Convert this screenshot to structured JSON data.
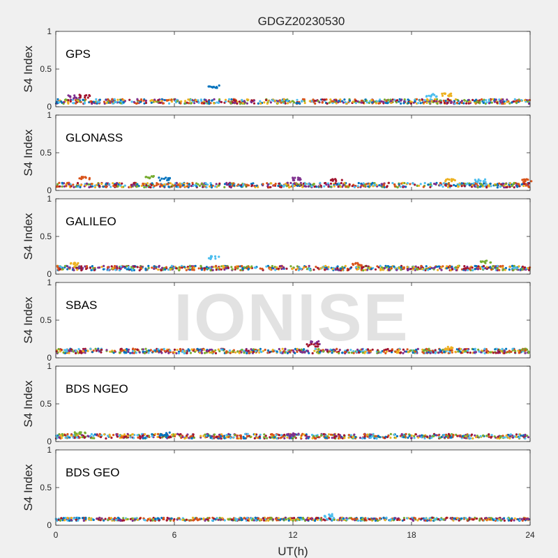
{
  "chart_data": {
    "type": "scatter",
    "title": "GDGZ20230530",
    "xlabel": "UT(h)",
    "ylabel": "S4 Index",
    "xlim": [
      0,
      24
    ],
    "xticks": [
      0,
      6,
      12,
      18,
      24
    ],
    "ylim": [
      0,
      1
    ],
    "yticks": [
      0,
      0.5,
      1
    ],
    "grid": false,
    "watermark": "IONISE",
    "series_colors": [
      "#0072bd",
      "#d95319",
      "#edb120",
      "#7e2f8e",
      "#77ac30",
      "#4dbeee",
      "#a2142f"
    ],
    "panels": [
      {
        "label": "GPS",
        "baseline": 0.07,
        "spread": 0.03,
        "features": [
          {
            "x": 8.0,
            "y": 0.29
          },
          {
            "x": 0.9,
            "y": 0.15
          },
          {
            "x": 1.5,
            "y": 0.16
          },
          {
            "x": 19.8,
            "y": 0.18
          },
          {
            "x": 19.0,
            "y": 0.17
          }
        ]
      },
      {
        "label": "GLONASS",
        "baseline": 0.07,
        "spread": 0.03,
        "features": [
          {
            "x": 1.5,
            "y": 0.18
          },
          {
            "x": 4.8,
            "y": 0.2
          },
          {
            "x": 5.5,
            "y": 0.17
          },
          {
            "x": 12.2,
            "y": 0.17
          },
          {
            "x": 14.2,
            "y": 0.16
          },
          {
            "x": 20.0,
            "y": 0.16
          },
          {
            "x": 21.5,
            "y": 0.15
          },
          {
            "x": 23.8,
            "y": 0.15
          }
        ]
      },
      {
        "label": "GALILEO",
        "baseline": 0.08,
        "spread": 0.03,
        "features": [
          {
            "x": 1.0,
            "y": 0.15
          },
          {
            "x": 8.0,
            "y": 0.24
          },
          {
            "x": 15.2,
            "y": 0.15
          },
          {
            "x": 21.8,
            "y": 0.18
          }
        ]
      },
      {
        "label": "SBAS",
        "baseline": 0.09,
        "spread": 0.03,
        "features": [
          {
            "x": 13.2,
            "y": 0.22
          },
          {
            "x": 13.0,
            "y": 0.19
          },
          {
            "x": 20.0,
            "y": 0.15
          }
        ]
      },
      {
        "label": "BDS NGEO",
        "baseline": 0.07,
        "spread": 0.03,
        "features": [
          {
            "x": 1.2,
            "y": 0.13
          },
          {
            "x": 5.5,
            "y": 0.12
          },
          {
            "x": 12.0,
            "y": 0.11
          }
        ]
      },
      {
        "label": "BDS GEO",
        "baseline": 0.08,
        "spread": 0.02,
        "features": [
          {
            "x": 13.8,
            "y": 0.15
          }
        ]
      }
    ]
  }
}
